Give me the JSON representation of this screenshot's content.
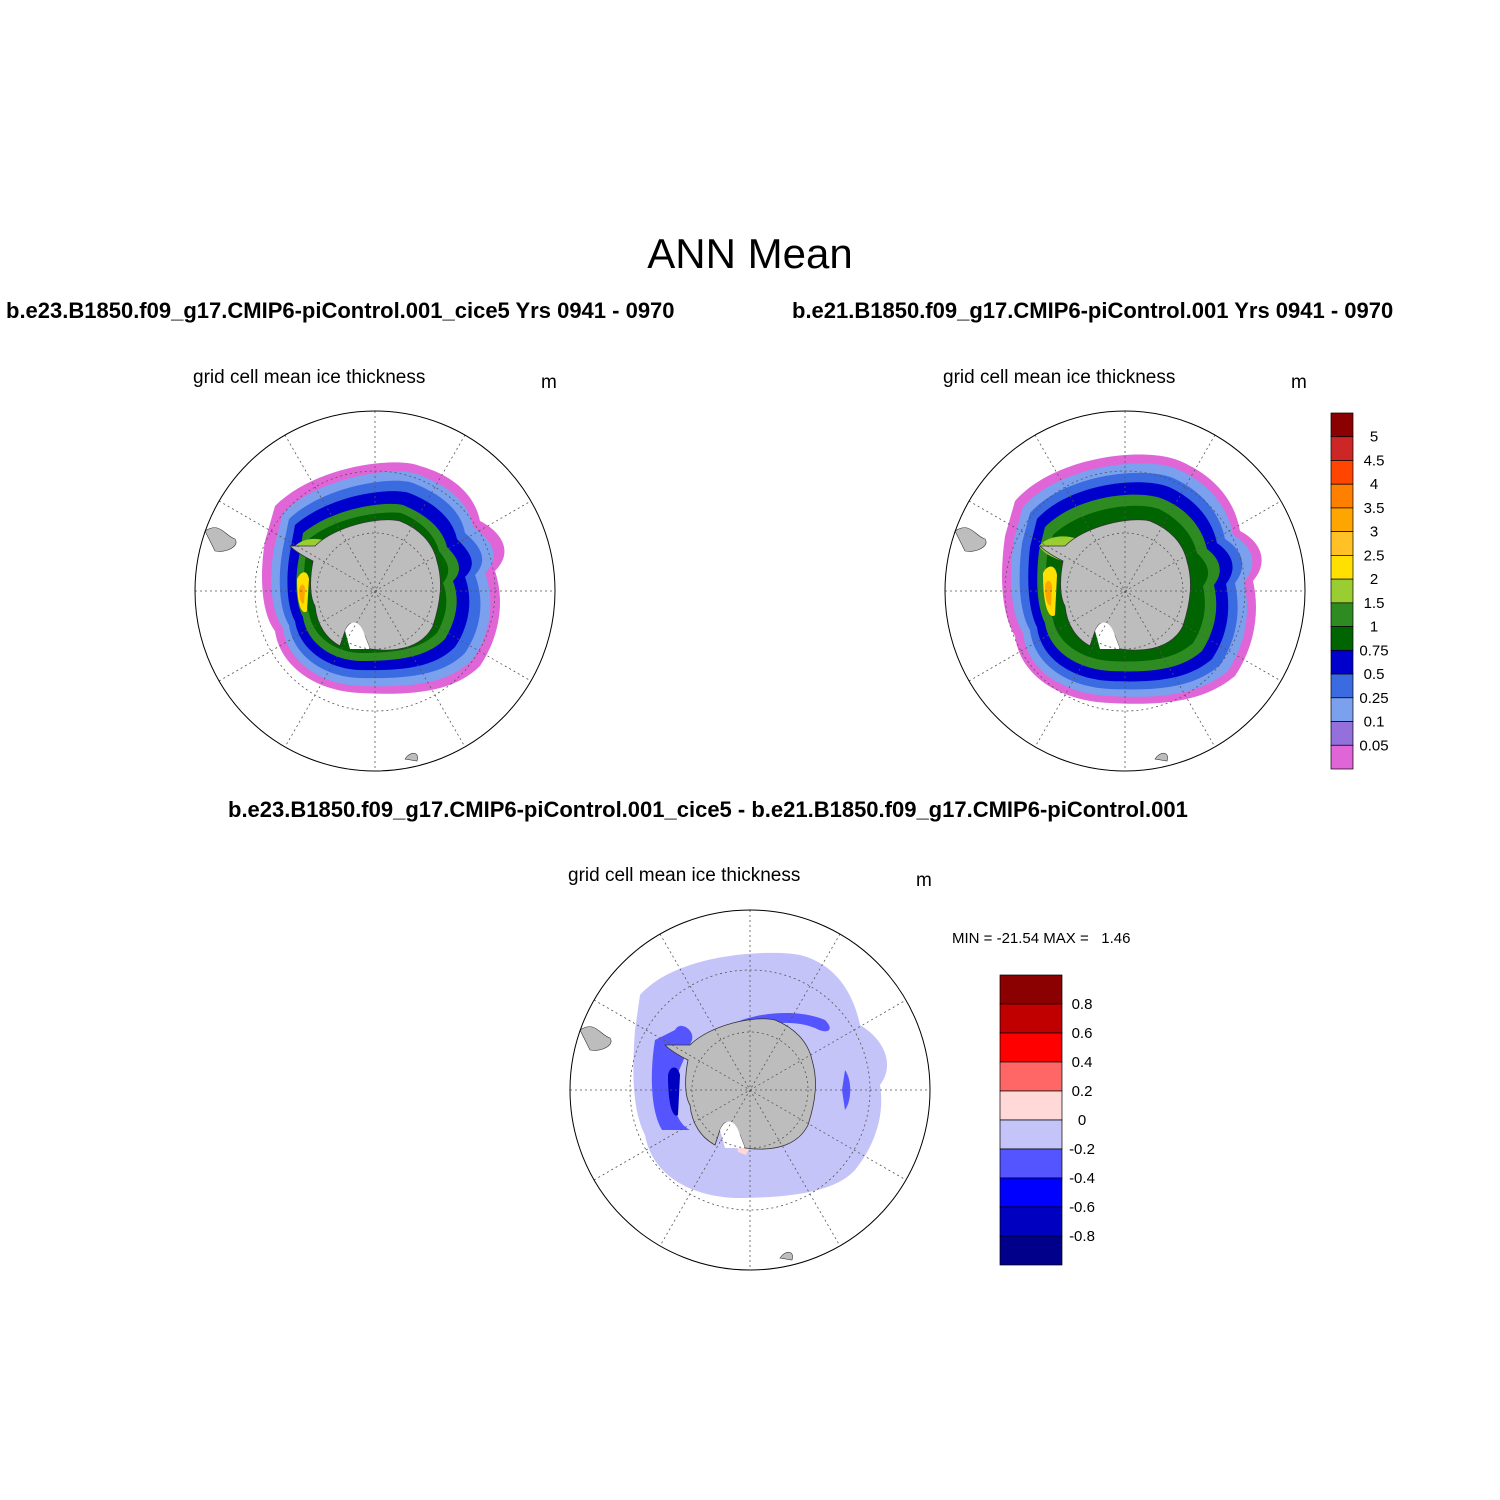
{
  "figure": {
    "title": "ANN Mean"
  },
  "panels": [
    {
      "case_title": "b.e23.B1850.f09_g17.CMIP6-piControl.001_cice5  Yrs 0941 - 0970",
      "subtitle": "grid cell mean ice thickness",
      "units": "m"
    },
    {
      "case_title": "b.e21.B1850.f09_g17.CMIP6-piControl.001  Yrs 0941 - 0970",
      "subtitle": "grid cell mean ice thickness",
      "units": "m"
    },
    {
      "case_title": "b.e23.B1850.f09_g17.CMIP6-piControl.001_cice5 - b.e21.B1850.f09_g17.CMIP6-piControl.001",
      "subtitle": "grid cell mean ice thickness",
      "units": "m",
      "minmax": "MIN = -21.54 MAX =   1.46"
    }
  ],
  "colorbars": {
    "thickness": {
      "labels": [
        "5",
        "4.5",
        "4",
        "3.5",
        "3",
        "2.5",
        "2",
        "1.5",
        "1",
        "0.75",
        "0.5",
        "0.25",
        "0.1",
        "0.05"
      ],
      "colors": [
        "#8b0000",
        "#cd2626",
        "#ff4500",
        "#ff7f00",
        "#ffa500",
        "#ffc125",
        "#ffe000",
        "#9acd32",
        "#2e8b22",
        "#006400",
        "#0000cd",
        "#3a6be0",
        "#7aa0ee",
        "#9370db",
        "#e066d8"
      ]
    },
    "difference": {
      "labels": [
        "0.8",
        "0.6",
        "0.4",
        "0.2",
        "0",
        "-0.2",
        "-0.4",
        "-0.6",
        "-0.8"
      ],
      "colors": [
        "#8b0000",
        "#c00000",
        "#ff0000",
        "#ff6666",
        "#ffd8d8",
        "#c4c4f8",
        "#5555ff",
        "#0000ff",
        "#0000c0",
        "#00008b"
      ]
    }
  },
  "map_colors": {
    "land": "#bdbdbd",
    "pink": "#e066d8",
    "light_blue": "#7aa0ee",
    "mid_blue": "#3a6be0",
    "dark_blue": "#0000cd",
    "green": "#2e8b22",
    "dark_green": "#006400",
    "yellow_green": "#9acd32",
    "yellow": "#ffe000",
    "orange": "#ffa500",
    "diff_light": "#c4c4f8",
    "diff_mid": "#5555ff",
    "diff_dark": "#0000c0",
    "diff_pink": "#ffd8d8"
  }
}
